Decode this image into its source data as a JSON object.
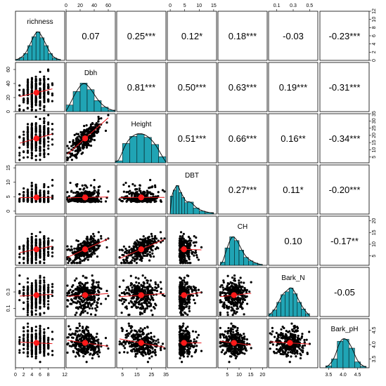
{
  "chart_data": {
    "type": "scatter_matrix",
    "variables": [
      "richness",
      "Dbh",
      "Height",
      "DBT",
      "CH",
      "Bark_N",
      "Bark_pH"
    ],
    "ranges": {
      "richness": [
        0,
        12
      ],
      "Dbh": [
        0,
        70
      ],
      "Height": [
        1,
        35
      ],
      "DBT": [
        -1,
        16
      ],
      "CH": [
        1,
        22
      ],
      "Bark_N": [
        0.0,
        0.6
      ],
      "Bark_pH": [
        3.2,
        4.9
      ]
    },
    "axis_ticks": {
      "top": {
        "Dbh": [
          "0",
          "20",
          "40",
          "60"
        ],
        "DBT": [
          "0",
          "5",
          "10",
          "15"
        ],
        "Bark_N": [
          "0.1",
          "0.3",
          "0.5"
        ]
      },
      "bottom": {
        "richness": [
          "0",
          "2",
          "4",
          "6",
          "8",
          "12"
        ],
        "Height": [
          "5",
          "15",
          "25",
          "35"
        ],
        "CH": [
          "5",
          "10",
          "15",
          "20"
        ],
        "Bark_pH": [
          "3.5",
          "4.0",
          "4.5"
        ]
      },
      "left": {
        "Dbh": [
          "0",
          "20",
          "40",
          "60"
        ],
        "DBT": [
          "0",
          "5",
          "10",
          "15"
        ],
        "Bark_N": [
          "0.1",
          "0.3"
        ]
      },
      "right": {
        "richness": [
          "0",
          "2",
          "4",
          "6",
          "8",
          "10",
          "12"
        ],
        "Height": [
          "5",
          "10",
          "15",
          "20",
          "25",
          "30",
          "35"
        ],
        "CH": [
          "5",
          "10",
          "15",
          "20"
        ],
        "Bark_pH": [
          "3.5",
          "4.0",
          "4.5"
        ]
      }
    },
    "correlations": [
      {
        "row": "richness",
        "col": "Dbh",
        "label": "0.07"
      },
      {
        "row": "richness",
        "col": "Height",
        "label": "0.25***"
      },
      {
        "row": "richness",
        "col": "DBT",
        "label": "0.12*"
      },
      {
        "row": "richness",
        "col": "CH",
        "label": "0.18***"
      },
      {
        "row": "richness",
        "col": "Bark_N",
        "label": "-0.03"
      },
      {
        "row": "richness",
        "col": "Bark_pH",
        "label": "-0.23***"
      },
      {
        "row": "Dbh",
        "col": "Height",
        "label": "0.81***"
      },
      {
        "row": "Dbh",
        "col": "DBT",
        "label": "0.50***"
      },
      {
        "row": "Dbh",
        "col": "CH",
        "label": "0.63***"
      },
      {
        "row": "Dbh",
        "col": "Bark_N",
        "label": "0.19***"
      },
      {
        "row": "Dbh",
        "col": "Bark_pH",
        "label": "-0.31***"
      },
      {
        "row": "Height",
        "col": "DBT",
        "label": "0.51***"
      },
      {
        "row": "Height",
        "col": "CH",
        "label": "0.66***"
      },
      {
        "row": "Height",
        "col": "Bark_N",
        "label": "0.16**"
      },
      {
        "row": "Height",
        "col": "Bark_pH",
        "label": "-0.34***"
      },
      {
        "row": "DBT",
        "col": "CH",
        "label": "0.27***"
      },
      {
        "row": "DBT",
        "col": "Bark_N",
        "label": "0.11*"
      },
      {
        "row": "DBT",
        "col": "Bark_pH",
        "label": "-0.20***"
      },
      {
        "row": "CH",
        "col": "Bark_N",
        "label": "0.10"
      },
      {
        "row": "CH",
        "col": "Bark_pH",
        "label": "-0.17**"
      },
      {
        "row": "Bark_N",
        "col": "Bark_pH",
        "label": "-0.05"
      }
    ],
    "histograms": {
      "richness": {
        "bins": [
          [
            0,
            1,
            2
          ],
          [
            1,
            2,
            6
          ],
          [
            2,
            3,
            14
          ],
          [
            3,
            4,
            30
          ],
          [
            4,
            5,
            48
          ],
          [
            5,
            6,
            58
          ],
          [
            6,
            7,
            46
          ],
          [
            7,
            8,
            30
          ],
          [
            8,
            9,
            14
          ],
          [
            9,
            10,
            5
          ],
          [
            10,
            11,
            2
          ]
        ]
      },
      "Dbh": {
        "bins": [
          [
            0,
            10,
            18
          ],
          [
            10,
            20,
            55
          ],
          [
            20,
            30,
            78
          ],
          [
            30,
            40,
            60
          ],
          [
            40,
            50,
            30
          ],
          [
            50,
            60,
            12
          ],
          [
            60,
            70,
            4
          ]
        ]
      },
      "Height": {
        "bins": [
          [
            0,
            5,
            4
          ],
          [
            5,
            10,
            38
          ],
          [
            10,
            15,
            52
          ],
          [
            15,
            20,
            56
          ],
          [
            20,
            25,
            50
          ],
          [
            25,
            30,
            36
          ],
          [
            30,
            35,
            12
          ]
        ]
      },
      "DBT": {
        "bins": [
          [
            0,
            1,
            60
          ],
          [
            1,
            2,
            80
          ],
          [
            2,
            3,
            95
          ],
          [
            3,
            4,
            72
          ],
          [
            4,
            5,
            55
          ],
          [
            5,
            6,
            38
          ],
          [
            6,
            8,
            40
          ],
          [
            8,
            10,
            20
          ],
          [
            10,
            12,
            10
          ],
          [
            12,
            15,
            5
          ]
        ]
      },
      "CH": {
        "bins": [
          [
            2,
            4,
            10
          ],
          [
            4,
            6,
            55
          ],
          [
            6,
            8,
            90
          ],
          [
            8,
            10,
            78
          ],
          [
            10,
            12,
            48
          ],
          [
            12,
            14,
            25
          ],
          [
            14,
            16,
            14
          ],
          [
            16,
            18,
            7
          ],
          [
            18,
            20,
            3
          ]
        ]
      },
      "Bark_N": {
        "bins": [
          [
            0.0,
            0.05,
            6
          ],
          [
            0.05,
            0.1,
            14
          ],
          [
            0.1,
            0.15,
            30
          ],
          [
            0.15,
            0.2,
            46
          ],
          [
            0.2,
            0.25,
            52
          ],
          [
            0.25,
            0.3,
            60
          ],
          [
            0.3,
            0.35,
            48
          ],
          [
            0.35,
            0.4,
            30
          ],
          [
            0.4,
            0.45,
            16
          ],
          [
            0.45,
            0.5,
            6
          ]
        ]
      },
      "Bark_pH": {
        "bins": [
          [
            3.4,
            3.6,
            4
          ],
          [
            3.6,
            3.8,
            18
          ],
          [
            3.8,
            4.0,
            54
          ],
          [
            4.0,
            4.2,
            58
          ],
          [
            4.2,
            4.4,
            40
          ],
          [
            4.4,
            4.6,
            12
          ],
          [
            4.6,
            4.8,
            3
          ]
        ]
      }
    },
    "density_line_color": "#000000",
    "histogram_color": "#20a4b4",
    "point_color": "#000000",
    "fit_line_color": "#e8191d",
    "mean_point_color": "#ff1a1a",
    "grid": false
  }
}
